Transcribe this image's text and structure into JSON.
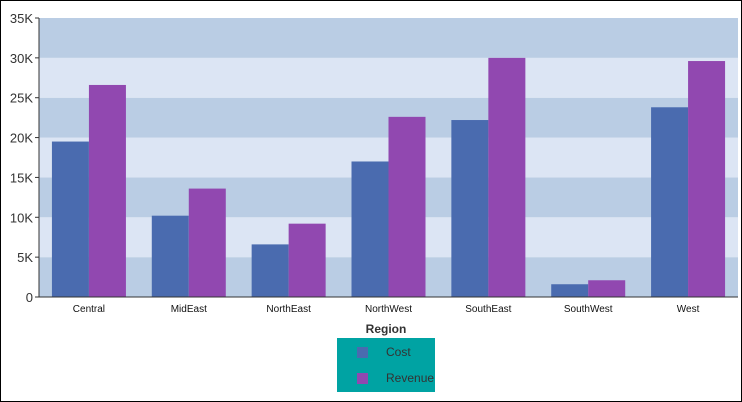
{
  "chart_data": {
    "type": "bar",
    "xlabel": "Region",
    "ylabel": "",
    "ylim": [
      0,
      35000
    ],
    "yticks": [
      "0",
      "5K",
      "10K",
      "15K",
      "20K",
      "25K",
      "30K",
      "35K"
    ],
    "categories": [
      "Central",
      "MidEast",
      "NorthEast",
      "NorthWest",
      "SouthEast",
      "SouthWest",
      "West"
    ],
    "series": [
      {
        "name": "Cost",
        "color": "#4a6baf",
        "values": [
          19500,
          10200,
          6600,
          17000,
          22200,
          1600,
          23800
        ]
      },
      {
        "name": "Revenue",
        "color": "#9148b0",
        "values": [
          26600,
          13600,
          9200,
          22600,
          30000,
          2100,
          29600
        ]
      }
    ],
    "legend": {
      "position": "bottom-center",
      "background": "#00a3a3"
    },
    "bands": [
      "#bacde4",
      "#dce5f4"
    ]
  }
}
